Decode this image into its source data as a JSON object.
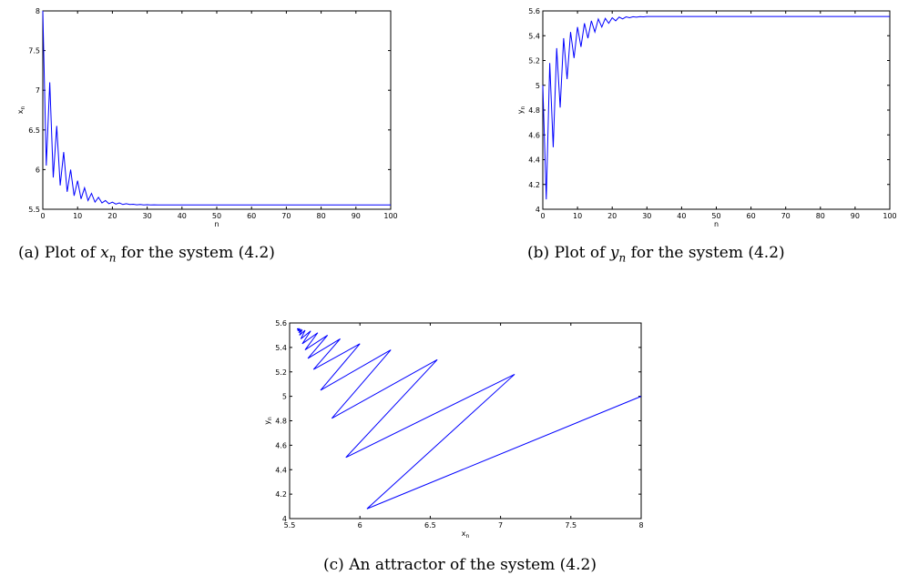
{
  "chart_data": [
    {
      "id": "a",
      "type": "line",
      "x_start": 0,
      "x_step": 1,
      "values": [
        8.0,
        6.05,
        7.1,
        5.9,
        6.55,
        5.8,
        6.22,
        5.72,
        6.0,
        5.67,
        5.86,
        5.63,
        5.77,
        5.61,
        5.7,
        5.59,
        5.65,
        5.58,
        5.61,
        5.57,
        5.59,
        5.565,
        5.58,
        5.56,
        5.57,
        5.56,
        5.563,
        5.556,
        5.56,
        5.555,
        5.557,
        5.555,
        5.556,
        5.555,
        5.555,
        5.555,
        5.555,
        5.555,
        5.555,
        5.555,
        5.555,
        5.555,
        5.555,
        5.555,
        5.555,
        5.555,
        5.555,
        5.555,
        5.555,
        5.555,
        5.555,
        5.555,
        5.555,
        5.555,
        5.555,
        5.555,
        5.555,
        5.555,
        5.555,
        5.555,
        5.555,
        5.555,
        5.555,
        5.555,
        5.555,
        5.555,
        5.555,
        5.555,
        5.555,
        5.555,
        5.555,
        5.555,
        5.555,
        5.555,
        5.555,
        5.555,
        5.555,
        5.555,
        5.555,
        5.555,
        5.555,
        5.555,
        5.555,
        5.555,
        5.555,
        5.555,
        5.555,
        5.555,
        5.555,
        5.555,
        5.555,
        5.555,
        5.555,
        5.555,
        5.555,
        5.555,
        5.555,
        5.555,
        5.555,
        5.555,
        5.555
      ],
      "xlim": [
        0,
        100
      ],
      "ylim": [
        5.5,
        8
      ],
      "xticks": [
        "0",
        "10",
        "20",
        "30",
        "40",
        "50",
        "60",
        "70",
        "80",
        "90",
        "100"
      ],
      "yticks": [
        "5.5",
        "6",
        "6.5",
        "7",
        "7.5",
        "8"
      ],
      "xlabel": "n",
      "ylabel_base": "x",
      "ylabel_sub": "n",
      "line_color": "#0000ff",
      "caption": {
        "label": "(a)",
        "before": "Plot of",
        "var_base": "x",
        "var_sub": "n",
        "after": "for the system (4.2)"
      }
    },
    {
      "id": "b",
      "type": "line",
      "x_start": 0,
      "x_step": 1,
      "values": [
        5.0,
        4.08,
        5.18,
        4.5,
        5.3,
        4.82,
        5.38,
        5.05,
        5.43,
        5.22,
        5.47,
        5.31,
        5.5,
        5.38,
        5.52,
        5.43,
        5.535,
        5.47,
        5.54,
        5.5,
        5.545,
        5.52,
        5.55,
        5.535,
        5.552,
        5.545,
        5.553,
        5.55,
        5.554,
        5.552,
        5.555,
        5.555,
        5.555,
        5.555,
        5.555,
        5.555,
        5.555,
        5.555,
        5.555,
        5.555,
        5.555,
        5.555,
        5.555,
        5.555,
        5.555,
        5.555,
        5.555,
        5.555,
        5.555,
        5.555,
        5.555,
        5.555,
        5.555,
        5.555,
        5.555,
        5.555,
        5.555,
        5.555,
        5.555,
        5.555,
        5.555,
        5.555,
        5.555,
        5.555,
        5.555,
        5.555,
        5.555,
        5.555,
        5.555,
        5.555,
        5.555,
        5.555,
        5.555,
        5.555,
        5.555,
        5.555,
        5.555,
        5.555,
        5.555,
        5.555,
        5.555,
        5.555,
        5.555,
        5.555,
        5.555,
        5.555,
        5.555,
        5.555,
        5.555,
        5.555,
        5.555,
        5.555,
        5.555,
        5.555,
        5.555,
        5.555,
        5.555,
        5.555,
        5.555,
        5.555,
        5.555
      ],
      "xlim": [
        0,
        100
      ],
      "ylim": [
        4,
        5.6
      ],
      "xticks": [
        "0",
        "10",
        "20",
        "30",
        "40",
        "50",
        "60",
        "70",
        "80",
        "90",
        "100"
      ],
      "yticks": [
        "4",
        "4.2",
        "4.4",
        "4.6",
        "4.8",
        "5",
        "5.2",
        "5.4",
        "5.6"
      ],
      "xlabel": "n",
      "ylabel_base": "y",
      "ylabel_sub": "n",
      "line_color": "#0000ff",
      "caption": {
        "label": "(b)",
        "before": "Plot of",
        "var_base": "y",
        "var_sub": "n",
        "after": "for the system (4.2)"
      }
    },
    {
      "id": "c",
      "type": "line",
      "points": [
        [
          8.0,
          5.0
        ],
        [
          6.05,
          4.08
        ],
        [
          7.1,
          5.18
        ],
        [
          5.9,
          4.5
        ],
        [
          6.55,
          5.3
        ],
        [
          5.8,
          4.82
        ],
        [
          6.22,
          5.38
        ],
        [
          5.72,
          5.05
        ],
        [
          6.0,
          5.43
        ],
        [
          5.67,
          5.22
        ],
        [
          5.86,
          5.47
        ],
        [
          5.63,
          5.31
        ],
        [
          5.77,
          5.5
        ],
        [
          5.61,
          5.38
        ],
        [
          5.7,
          5.52
        ],
        [
          5.59,
          5.43
        ],
        [
          5.65,
          5.535
        ],
        [
          5.58,
          5.47
        ],
        [
          5.61,
          5.54
        ],
        [
          5.57,
          5.5
        ],
        [
          5.59,
          5.545
        ],
        [
          5.565,
          5.52
        ],
        [
          5.58,
          5.55
        ],
        [
          5.56,
          5.535
        ],
        [
          5.57,
          5.552
        ],
        [
          5.56,
          5.545
        ],
        [
          5.563,
          5.553
        ],
        [
          5.556,
          5.55
        ],
        [
          5.56,
          5.554
        ],
        [
          5.555,
          5.552
        ],
        [
          5.555,
          5.555
        ]
      ],
      "xlim": [
        5.5,
        8
      ],
      "ylim": [
        4,
        5.6
      ],
      "xticks": [
        "5.5",
        "6",
        "6.5",
        "7",
        "7.5",
        "8"
      ],
      "yticks": [
        "4",
        "4.2",
        "4.4",
        "4.6",
        "4.8",
        "5",
        "5.2",
        "5.4",
        "5.6"
      ],
      "xlabel_base": "x",
      "xlabel_sub": "n",
      "ylabel_base": "y",
      "ylabel_sub": "n",
      "line_color": "#0000ff",
      "caption": {
        "label": "(c)",
        "text": "An attractor of the system (4.2)"
      }
    }
  ]
}
